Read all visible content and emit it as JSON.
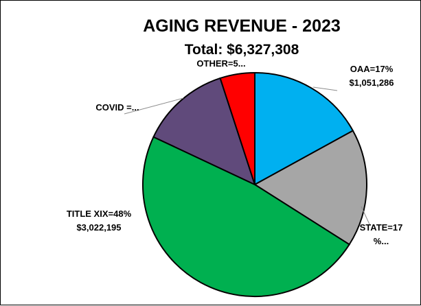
{
  "chart_data": {
    "type": "pie",
    "title": "AGING REVENUE - 2023",
    "subtitle": "Total: $6,327,308",
    "slices": [
      {
        "name": "OAA",
        "percent": 17,
        "value": 1051286,
        "color": "#00B0F0",
        "label_lines": [
          "OAA=17%",
          "$1,051,286"
        ]
      },
      {
        "name": "STATE",
        "percent": 17,
        "value": null,
        "color": "#A6A6A6",
        "label_lines": [
          "STATE=17",
          "%..."
        ]
      },
      {
        "name": "TITLE XIX",
        "percent": 48,
        "value": 3022195,
        "color": "#00B050",
        "label_lines": [
          "TITLE XIX=48%",
          "$3,022,195"
        ]
      },
      {
        "name": "COVID",
        "percent": 13,
        "value": null,
        "color": "#604A7B",
        "label_lines": [
          "COVID =..."
        ]
      },
      {
        "name": "OTHER",
        "percent": 5,
        "value": null,
        "color": "#FF0000",
        "label_lines": [
          "OTHER=5..."
        ]
      }
    ],
    "legend": "none"
  }
}
